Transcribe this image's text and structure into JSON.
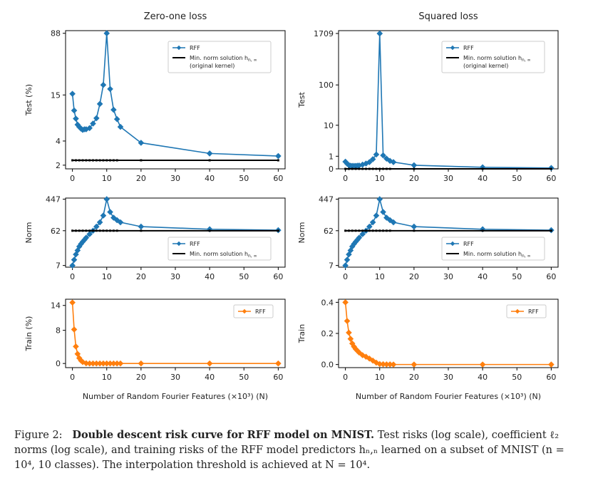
{
  "chart_data": [
    {
      "id": "p1",
      "type": "line",
      "title": "Zero-one loss",
      "ylabel": "Test (%)",
      "xlabel": "",
      "yscale": "log",
      "xlim": [
        -2,
        62
      ],
      "ylim": [
        1.8,
        95
      ],
      "xticks": [
        0,
        10,
        20,
        30,
        40,
        50,
        60
      ],
      "yticks": [
        {
          "v": 2,
          "label": "2"
        },
        {
          "v": 4,
          "label": "4"
        },
        {
          "v": 15,
          "label": "15"
        },
        {
          "v": 88,
          "label": "88"
        }
      ],
      "legend": "top-right",
      "series": [
        {
          "name": "RFF",
          "color": "#1f77b4",
          "marker": "diamond",
          "x": [
            0,
            0.5,
            1,
            1.5,
            2,
            2.5,
            3,
            3.5,
            4,
            5,
            6,
            7,
            8,
            9,
            10,
            11,
            12,
            13,
            14,
            20,
            40,
            60
          ],
          "y": [
            15.5,
            9.6,
            7.6,
            6.4,
            6.0,
            5.7,
            5.5,
            5.6,
            5.6,
            5.8,
            6.6,
            7.7,
            11.6,
            20,
            88,
            17.8,
            9.8,
            7.5,
            6.0,
            3.8,
            2.8,
            2.6
          ]
        },
        {
          "name": "Min. norm solution h",
          "subscript": "n, ∞",
          "name2": "(original kernel)",
          "color": "#000000",
          "marker": "dot",
          "x": [
            0,
            60
          ],
          "y": [
            2.3,
            2.3
          ]
        }
      ]
    },
    {
      "id": "p2",
      "type": "line",
      "title": "Squared loss",
      "ylabel": "Test",
      "xlabel": "",
      "yscale": "symlog",
      "xlim": [
        -2,
        62
      ],
      "ylim": [
        0,
        2000
      ],
      "xticks": [
        0,
        10,
        20,
        30,
        40,
        50,
        60
      ],
      "yticks": [
        {
          "v": 0,
          "label": "0"
        },
        {
          "v": 1,
          "label": "1"
        },
        {
          "v": 10,
          "label": "10"
        },
        {
          "v": 100,
          "label": "100"
        },
        {
          "v": 1709,
          "label": "1709"
        }
      ],
      "legend": "top-right",
      "series": [
        {
          "name": "RFF",
          "color": "#1f77b4",
          "marker": "diamond",
          "x": [
            0,
            0.5,
            1,
            1.5,
            2,
            2.5,
            3,
            3.5,
            4,
            5,
            6,
            7,
            8,
            9,
            10,
            11,
            12,
            13,
            14,
            20,
            40,
            60
          ],
          "y": [
            0.48,
            0.33,
            0.23,
            0.19,
            0.18,
            0.18,
            0.18,
            0.19,
            0.2,
            0.26,
            0.34,
            0.45,
            0.7,
            1.2,
            1709,
            1.1,
            0.75,
            0.55,
            0.45,
            0.22,
            0.09,
            0.05
          ]
        },
        {
          "name": "Min. norm solution h",
          "subscript": "n, ∞",
          "name2": "(original kernel)",
          "color": "#000000",
          "marker": "dot",
          "x": [
            0,
            60
          ],
          "y": [
            0,
            0
          ]
        }
      ]
    },
    {
      "id": "p3",
      "type": "line",
      "title": "",
      "ylabel": "Norm",
      "xlabel": "",
      "yscale": "log",
      "xlim": [
        -2,
        62
      ],
      "ylim": [
        6.3,
        480
      ],
      "xticks": [
        0,
        10,
        20,
        30,
        40,
        50,
        60
      ],
      "yticks": [
        {
          "v": 7,
          "label": "7"
        },
        {
          "v": 62,
          "label": "62"
        },
        {
          "v": 447,
          "label": "447"
        }
      ],
      "legend": "center-right",
      "series": [
        {
          "name": "RFF",
          "color": "#1f77b4",
          "marker": "diamond",
          "x": [
            0,
            0.5,
            1,
            1.5,
            2,
            2.5,
            3,
            3.5,
            4,
            5,
            6,
            7,
            8,
            9,
            10,
            11,
            12,
            13,
            14,
            20,
            40,
            60
          ],
          "y": [
            7,
            10,
            14,
            18,
            23,
            27,
            31,
            35,
            40,
            50,
            62,
            80,
            105,
            160,
            447,
            200,
            140,
            120,
            105,
            80,
            68,
            64
          ]
        },
        {
          "name": "Min. norm solution h",
          "subscript": "n, ∞",
          "color": "#000000",
          "marker": "dot",
          "x": [
            0,
            60
          ],
          "y": [
            62,
            62
          ]
        }
      ]
    },
    {
      "id": "p4",
      "type": "line",
      "title": "",
      "ylabel": "Norm",
      "xlabel": "",
      "yscale": "log",
      "xlim": [
        -2,
        62
      ],
      "ylim": [
        6.3,
        480
      ],
      "xticks": [
        0,
        10,
        20,
        30,
        40,
        50,
        60
      ],
      "yticks": [
        {
          "v": 7,
          "label": "7"
        },
        {
          "v": 62,
          "label": "62"
        },
        {
          "v": 447,
          "label": "447"
        }
      ],
      "legend": "center-right",
      "series": [
        {
          "name": "RFF",
          "color": "#1f77b4",
          "marker": "diamond",
          "x": [
            0,
            0.5,
            1,
            1.5,
            2,
            2.5,
            3,
            3.5,
            4,
            5,
            6,
            7,
            8,
            9,
            10,
            11,
            12,
            13,
            14,
            20,
            40,
            60
          ],
          "y": [
            7,
            10,
            14,
            18,
            23,
            27,
            31,
            35,
            40,
            50,
            62,
            80,
            105,
            160,
            447,
            200,
            140,
            120,
            105,
            80,
            68,
            64
          ]
        },
        {
          "name": "Min. norm solution h",
          "subscript": "n, ∞",
          "color": "#000000",
          "marker": "dot",
          "x": [
            0,
            60
          ],
          "y": [
            62,
            62
          ]
        }
      ]
    },
    {
      "id": "p5",
      "type": "line",
      "title": "",
      "ylabel": "Train (%)",
      "xlabel": "Number of Random Fourier Features (×10³) (N)",
      "yscale": "linear",
      "xlim": [
        -2,
        62
      ],
      "ylim": [
        -1,
        15.5
      ],
      "xticks": [
        0,
        10,
        20,
        30,
        40,
        50,
        60
      ],
      "yticks": [
        {
          "v": 0,
          "label": "0"
        },
        {
          "v": 8,
          "label": "8"
        },
        {
          "v": 14,
          "label": "14"
        }
      ],
      "legend": "top-right",
      "series": [
        {
          "name": "RFF",
          "color": "#ff7f0e",
          "marker": "diamond",
          "x": [
            0,
            0.5,
            1,
            1.5,
            2,
            2.5,
            3,
            4,
            5,
            6,
            7,
            8,
            9,
            10,
            11,
            12,
            13,
            14,
            20,
            40,
            60
          ],
          "y": [
            14.7,
            8.2,
            4.1,
            2.3,
            1.3,
            0.7,
            0.35,
            0.05,
            0,
            0,
            0,
            0,
            0,
            0,
            0,
            0,
            0,
            0,
            0,
            0,
            0
          ]
        }
      ]
    },
    {
      "id": "p6",
      "type": "line",
      "title": "",
      "ylabel": "Train",
      "xlabel": "Number of Random Fourier Features (×10³) (N)",
      "yscale": "linear",
      "xlim": [
        -2,
        62
      ],
      "ylim": [
        -0.02,
        0.42
      ],
      "xticks": [
        0,
        10,
        20,
        30,
        40,
        50,
        60
      ],
      "yticks": [
        {
          "v": 0,
          "label": "0.0"
        },
        {
          "v": 0.2,
          "label": "0.2"
        },
        {
          "v": 0.4,
          "label": "0.4"
        }
      ],
      "legend": "top-right",
      "series": [
        {
          "name": "RFF",
          "color": "#ff7f0e",
          "marker": "diamond",
          "x": [
            0,
            0.5,
            1,
            1.5,
            2,
            2.5,
            3,
            3.5,
            4,
            5,
            6,
            7,
            8,
            9,
            10,
            11,
            12,
            13,
            14,
            20,
            40,
            60
          ],
          "y": [
            0.4,
            0.28,
            0.205,
            0.165,
            0.135,
            0.115,
            0.1,
            0.088,
            0.077,
            0.06,
            0.05,
            0.038,
            0.025,
            0.012,
            0.003,
            0.002,
            0.001,
            0.001,
            0.0,
            0.0,
            0.0,
            0.0
          ]
        }
      ]
    }
  ],
  "caption": {
    "label": "Figure 2:",
    "lead": "Double descent risk curve for RFF model on MNIST.",
    "text": "Test risks (log scale), coefficient ℓ₂ norms (log scale), and training risks of the RFF model predictors hₙ,ₙ learned on a subset of MNIST (n = 10⁴, 10 classes). The interpolation threshold is achieved at N = 10⁴."
  }
}
